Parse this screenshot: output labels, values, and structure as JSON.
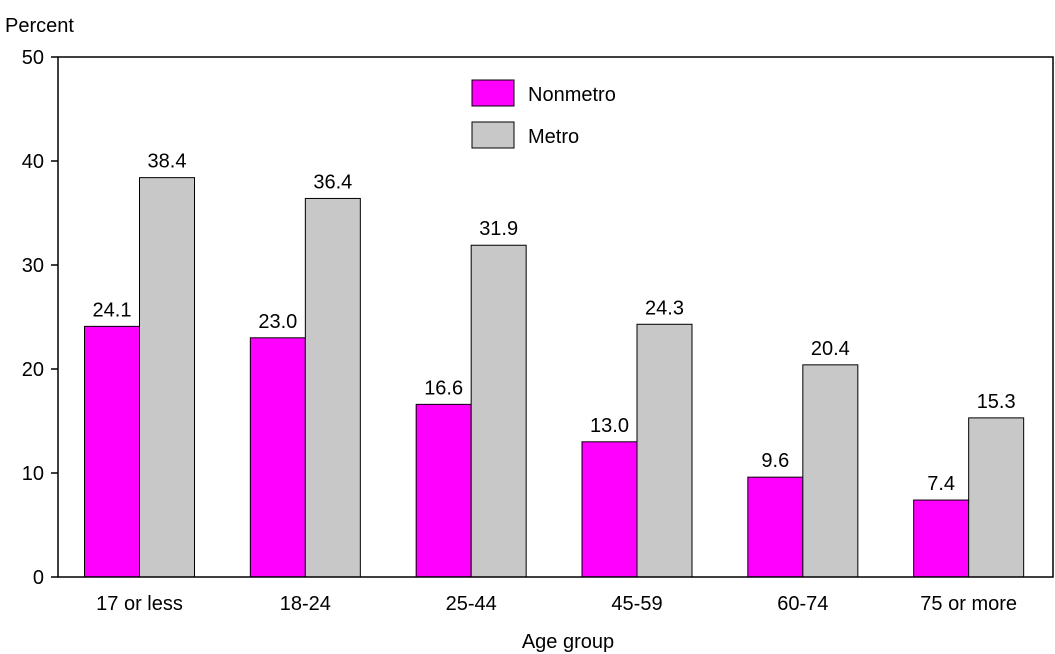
{
  "chart_data": {
    "type": "bar",
    "ylabel": "Percent",
    "xlabel": "Age group",
    "ylim": [
      0,
      50
    ],
    "yticks": [
      0,
      10,
      20,
      30,
      40,
      50
    ],
    "grid": false,
    "legend_position": "top-center",
    "categories": [
      "17 or less",
      "18-24",
      "25-44",
      "45-59",
      "60-74",
      "75 or more"
    ],
    "series": [
      {
        "name": "Nonmetro",
        "color": "#ff00ff",
        "values": [
          24.1,
          23.0,
          16.6,
          13.0,
          9.6,
          7.4
        ],
        "labels": [
          "24.1",
          "23.0",
          "16.6",
          "13.0",
          "9.6",
          "7.4"
        ]
      },
      {
        "name": "Metro",
        "color": "#c8c8c8",
        "values": [
          38.4,
          36.4,
          31.9,
          24.3,
          20.4,
          15.3
        ],
        "labels": [
          "38.4",
          "36.4",
          "31.9",
          "24.3",
          "20.4",
          "15.3"
        ]
      }
    ]
  }
}
